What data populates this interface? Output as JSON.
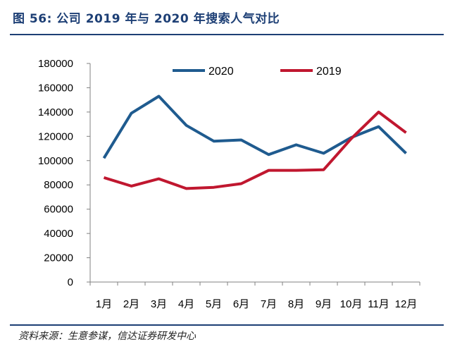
{
  "header": {
    "title": "图 56:  公司 2019 年与 2020 年搜索人气对比"
  },
  "footer": {
    "source": "资料来源：生意参谋，信达证券研发中心"
  },
  "colors": {
    "series_2020": "#1f5b8f",
    "series_2019": "#c0172f",
    "rule": "#1d3f75"
  },
  "chart_data": {
    "type": "line",
    "title": "",
    "xlabel": "",
    "ylabel": "",
    "categories": [
      "1月",
      "2月",
      "3月",
      "4月",
      "5月",
      "6月",
      "7月",
      "8月",
      "9月",
      "10月",
      "11月",
      "12月"
    ],
    "ylim": [
      0,
      180000
    ],
    "yticks": [
      0,
      20000,
      40000,
      60000,
      80000,
      100000,
      120000,
      140000,
      160000,
      180000
    ],
    "legend_position": "top",
    "grid": false,
    "series": [
      {
        "name": "2020",
        "color": "#1f5b8f",
        "values": [
          102000,
          139000,
          153000,
          129000,
          116000,
          117000,
          105000,
          113000,
          106000,
          119000,
          128000,
          106000
        ]
      },
      {
        "name": "2019",
        "color": "#c0172f",
        "values": [
          86000,
          79000,
          85000,
          77000,
          78000,
          81000,
          92000,
          92000,
          92500,
          118000,
          140000,
          123000
        ]
      }
    ]
  }
}
